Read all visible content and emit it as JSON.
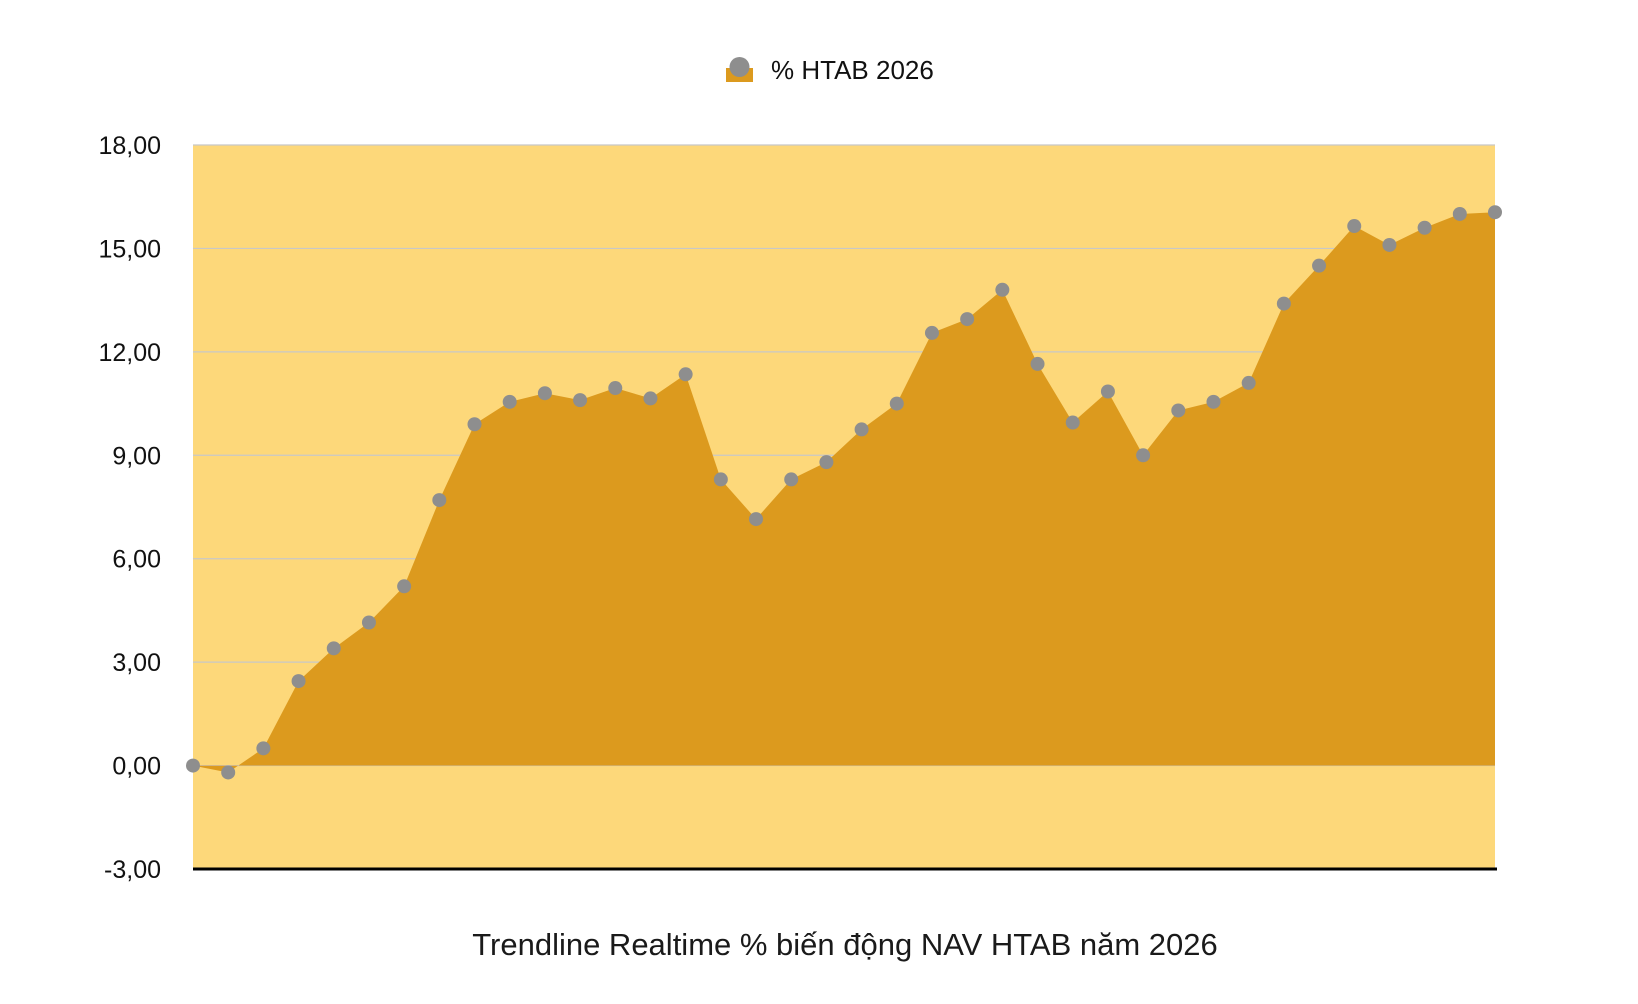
{
  "chart_data": {
    "type": "area",
    "title": "",
    "xlabel": "Trendline Realtime % biến động NAV HTAB năm 2026",
    "ylabel": "",
    "ylim": [
      -3,
      18
    ],
    "yticks": [
      "-3,00",
      "0,00",
      "3,00",
      "6,00",
      "9,00",
      "12,00",
      "15,00",
      "18,00"
    ],
    "ytick_values": [
      -3,
      0,
      3,
      6,
      9,
      12,
      15,
      18
    ],
    "grid": true,
    "legend": "top-center",
    "colors": {
      "plot_background": "#FDD87A",
      "area_fill": "#DC9A1E",
      "marker": "#8E8E8E",
      "gridline": "#C8C8C8",
      "baseline_axis": "#000000"
    },
    "series": [
      {
        "name": "% HTAB 2026",
        "values": [
          0.0,
          -0.2,
          0.5,
          2.45,
          3.4,
          4.15,
          5.2,
          7.7,
          9.9,
          10.55,
          10.8,
          10.6,
          10.95,
          10.65,
          11.35,
          8.3,
          7.15,
          8.3,
          8.8,
          9.75,
          10.5,
          12.55,
          12.95,
          13.8,
          11.65,
          9.95,
          10.85,
          9.0,
          10.3,
          10.55,
          11.1,
          13.4,
          14.5,
          15.65,
          15.1,
          15.6,
          16.0,
          16.05
        ]
      }
    ]
  }
}
